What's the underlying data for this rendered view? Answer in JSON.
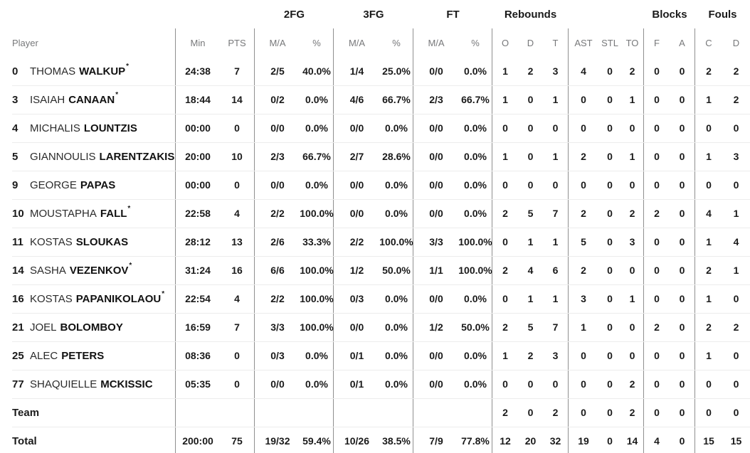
{
  "table": {
    "group_headers": {
      "fg2": "2FG",
      "fg3": "3FG",
      "ft": "FT",
      "rebounds": "Rebounds",
      "blocks": "Blocks",
      "fouls": "Fouls"
    },
    "columns": {
      "player": "Player",
      "min": "Min",
      "pts": "PTS",
      "ma": "M/A",
      "pct": "%",
      "reb_o": "O",
      "reb_d": "D",
      "reb_t": "T",
      "ast": "AST",
      "stl": "STL",
      "to": "TO",
      "blk_f": "F",
      "blk_a": "A",
      "foul_c": "C",
      "foul_d": "D"
    },
    "starter_mark": "*",
    "rows": [
      {
        "num": "0",
        "first": "THOMAS",
        "last": "WALKUP",
        "star": "*",
        "min": "24:38",
        "pts": "7",
        "fg2ma": "2/5",
        "fg2pct": "40.0%",
        "fg3ma": "1/4",
        "fg3pct": "25.0%",
        "ftma": "0/0",
        "ftpct": "0.0%",
        "or": "1",
        "dr": "2",
        "tr": "3",
        "ast": "4",
        "stl": "0",
        "to": "2",
        "bf": "0",
        "ba": "0",
        "fc": "2",
        "fd": "2"
      },
      {
        "num": "3",
        "first": "ISAIAH",
        "last": "CANAAN",
        "star": "*",
        "min": "18:44",
        "pts": "14",
        "fg2ma": "0/2",
        "fg2pct": "0.0%",
        "fg3ma": "4/6",
        "fg3pct": "66.7%",
        "ftma": "2/3",
        "ftpct": "66.7%",
        "or": "1",
        "dr": "0",
        "tr": "1",
        "ast": "0",
        "stl": "0",
        "to": "1",
        "bf": "0",
        "ba": "0",
        "fc": "1",
        "fd": "2"
      },
      {
        "num": "4",
        "first": "MICHALIS",
        "last": "LOUNTZIS",
        "min": "00:00",
        "pts": "0",
        "fg2ma": "0/0",
        "fg2pct": "0.0%",
        "fg3ma": "0/0",
        "fg3pct": "0.0%",
        "ftma": "0/0",
        "ftpct": "0.0%",
        "or": "0",
        "dr": "0",
        "tr": "0",
        "ast": "0",
        "stl": "0",
        "to": "0",
        "bf": "0",
        "ba": "0",
        "fc": "0",
        "fd": "0"
      },
      {
        "num": "5",
        "first": "GIANNOULIS",
        "last": "LARENTZAKIS",
        "min": "20:00",
        "pts": "10",
        "fg2ma": "2/3",
        "fg2pct": "66.7%",
        "fg3ma": "2/7",
        "fg3pct": "28.6%",
        "ftma": "0/0",
        "ftpct": "0.0%",
        "or": "1",
        "dr": "0",
        "tr": "1",
        "ast": "2",
        "stl": "0",
        "to": "1",
        "bf": "0",
        "ba": "0",
        "fc": "1",
        "fd": "3"
      },
      {
        "num": "9",
        "first": "GEORGE",
        "last": "PAPAS",
        "min": "00:00",
        "pts": "0",
        "fg2ma": "0/0",
        "fg2pct": "0.0%",
        "fg3ma": "0/0",
        "fg3pct": "0.0%",
        "ftma": "0/0",
        "ftpct": "0.0%",
        "or": "0",
        "dr": "0",
        "tr": "0",
        "ast": "0",
        "stl": "0",
        "to": "0",
        "bf": "0",
        "ba": "0",
        "fc": "0",
        "fd": "0"
      },
      {
        "num": "10",
        "first": "MOUSTAPHA",
        "last": "FALL",
        "star": "*",
        "min": "22:58",
        "pts": "4",
        "fg2ma": "2/2",
        "fg2pct": "100.0%",
        "fg3ma": "0/0",
        "fg3pct": "0.0%",
        "ftma": "0/0",
        "ftpct": "0.0%",
        "or": "2",
        "dr": "5",
        "tr": "7",
        "ast": "2",
        "stl": "0",
        "to": "2",
        "bf": "2",
        "ba": "0",
        "fc": "4",
        "fd": "1"
      },
      {
        "num": "11",
        "first": "KOSTAS",
        "last": "SLOUKAS",
        "min": "28:12",
        "pts": "13",
        "fg2ma": "2/6",
        "fg2pct": "33.3%",
        "fg3ma": "2/2",
        "fg3pct": "100.0%",
        "ftma": "3/3",
        "ftpct": "100.0%",
        "or": "0",
        "dr": "1",
        "tr": "1",
        "ast": "5",
        "stl": "0",
        "to": "3",
        "bf": "0",
        "ba": "0",
        "fc": "1",
        "fd": "4"
      },
      {
        "num": "14",
        "first": "SASHA",
        "last": "VEZENKOV",
        "star": "*",
        "min": "31:24",
        "pts": "16",
        "fg2ma": "6/6",
        "fg2pct": "100.0%",
        "fg3ma": "1/2",
        "fg3pct": "50.0%",
        "ftma": "1/1",
        "ftpct": "100.0%",
        "or": "2",
        "dr": "4",
        "tr": "6",
        "ast": "2",
        "stl": "0",
        "to": "0",
        "bf": "0",
        "ba": "0",
        "fc": "2",
        "fd": "1"
      },
      {
        "num": "16",
        "first": "KOSTAS",
        "last": "PAPANIKOLAOU",
        "star": "*",
        "min": "22:54",
        "pts": "4",
        "fg2ma": "2/2",
        "fg2pct": "100.0%",
        "fg3ma": "0/3",
        "fg3pct": "0.0%",
        "ftma": "0/0",
        "ftpct": "0.0%",
        "or": "0",
        "dr": "1",
        "tr": "1",
        "ast": "3",
        "stl": "0",
        "to": "1",
        "bf": "0",
        "ba": "0",
        "fc": "1",
        "fd": "0"
      },
      {
        "num": "21",
        "first": "JOEL",
        "last": "BOLOMBOY",
        "min": "16:59",
        "pts": "7",
        "fg2ma": "3/3",
        "fg2pct": "100.0%",
        "fg3ma": "0/0",
        "fg3pct": "0.0%",
        "ftma": "1/2",
        "ftpct": "50.0%",
        "or": "2",
        "dr": "5",
        "tr": "7",
        "ast": "1",
        "stl": "0",
        "to": "0",
        "bf": "2",
        "ba": "0",
        "fc": "2",
        "fd": "2"
      },
      {
        "num": "25",
        "first": "ALEC",
        "last": "PETERS",
        "min": "08:36",
        "pts": "0",
        "fg2ma": "0/3",
        "fg2pct": "0.0%",
        "fg3ma": "0/1",
        "fg3pct": "0.0%",
        "ftma": "0/0",
        "ftpct": "0.0%",
        "or": "1",
        "dr": "2",
        "tr": "3",
        "ast": "0",
        "stl": "0",
        "to": "0",
        "bf": "0",
        "ba": "0",
        "fc": "1",
        "fd": "0"
      },
      {
        "num": "77",
        "first": "SHAQUIELLE",
        "last": "MCKISSIC",
        "min": "05:35",
        "pts": "0",
        "fg2ma": "0/0",
        "fg2pct": "0.0%",
        "fg3ma": "0/1",
        "fg3pct": "0.0%",
        "ftma": "0/0",
        "ftpct": "0.0%",
        "or": "0",
        "dr": "0",
        "tr": "0",
        "ast": "0",
        "stl": "0",
        "to": "2",
        "bf": "0",
        "ba": "0",
        "fc": "0",
        "fd": "0"
      },
      {
        "type": "team",
        "label": "Team",
        "or": "2",
        "dr": "0",
        "tr": "2",
        "ast": "0",
        "stl": "0",
        "to": "2",
        "bf": "0",
        "ba": "0",
        "fc": "0",
        "fd": "0"
      },
      {
        "type": "total",
        "label": "Total",
        "min": "200:00",
        "pts": "75",
        "fg2ma": "19/32",
        "fg2pct": "59.4%",
        "fg3ma": "10/26",
        "fg3pct": "38.5%",
        "ftma": "7/9",
        "ftpct": "77.8%",
        "or": "12",
        "dr": "20",
        "tr": "32",
        "ast": "19",
        "stl": "0",
        "to": "14",
        "bf": "4",
        "ba": "0",
        "fc": "15",
        "fd": "15"
      }
    ],
    "colors": {
      "text": "#1a1a1a",
      "header_text": "#77787a",
      "divider": "#8f8f8f",
      "row_line": "#ececec",
      "background": "#ffffff"
    }
  }
}
